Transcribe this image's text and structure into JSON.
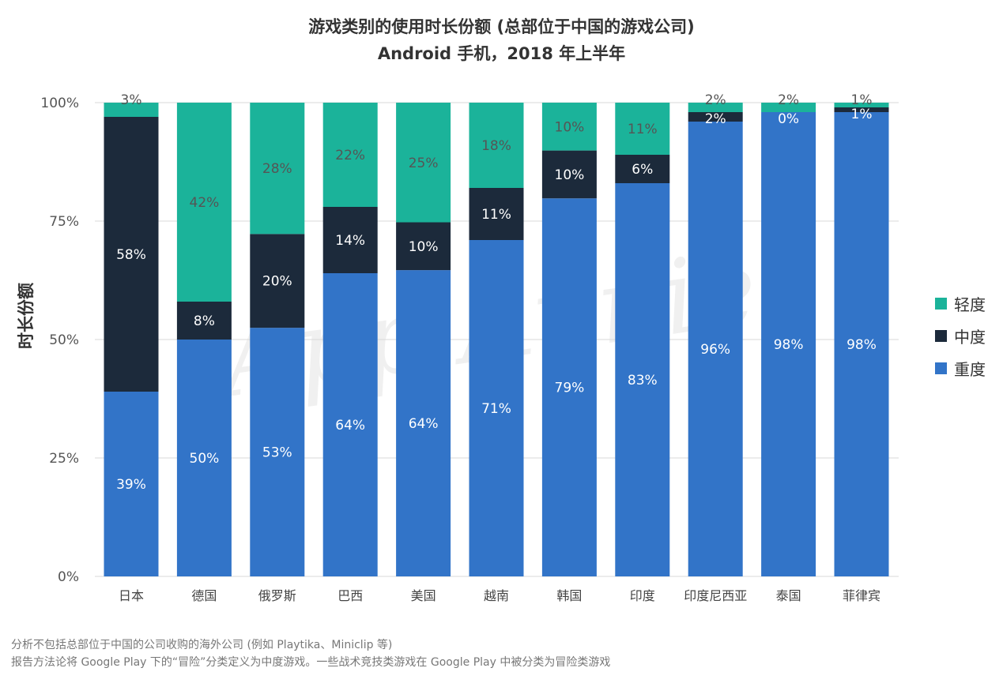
{
  "title_line1": "游戏类别的使用时长份额 (总部位于中国的游戏公司)",
  "title_line2": "Android 手机，2018 年上半年",
  "footnotes": [
    "分析不包括总部位于中国的公司收购的海外公司 (例如 Playtika、Miniclip 等)",
    "报告方法论将 Google Play 下的“冒险”分类定义为中度游戏。一些战术竞技类游戏在 Google Play 中被分类为冒险类游戏"
  ],
  "watermark": "App Annie",
  "chart_data": {
    "type": "bar",
    "stacked": true,
    "ylabel": "时长份额",
    "ylim": [
      0,
      100
    ],
    "yticks": [
      "0%",
      "25%",
      "50%",
      "75%",
      "100%"
    ],
    "grid": true,
    "legend_position": "right",
    "categories": [
      "日本",
      "德国",
      "俄罗斯",
      "巴西",
      "美国",
      "越南",
      "韩国",
      "印度",
      "印度尼西亚",
      "泰国",
      "菲律宾"
    ],
    "series": [
      {
        "name": "重度",
        "color": "#3274c8",
        "values": [
          39,
          50,
          53,
          64,
          64,
          71,
          79,
          83,
          96,
          98,
          98
        ]
      },
      {
        "name": "中度",
        "color": "#1c2a3b",
        "values": [
          58,
          8,
          20,
          14,
          10,
          11,
          10,
          6,
          2,
          0,
          1
        ]
      },
      {
        "name": "轻度",
        "color": "#1bb39a",
        "values": [
          3,
          42,
          28,
          22,
          25,
          18,
          10,
          11,
          2,
          2,
          1
        ]
      }
    ]
  }
}
